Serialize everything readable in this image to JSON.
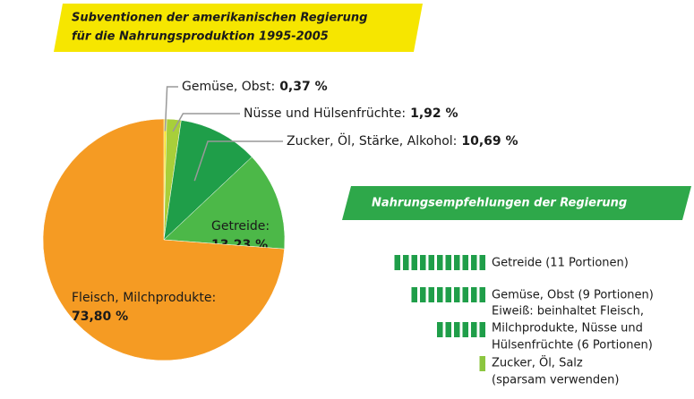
{
  "chart_data": [
    {
      "type": "pie",
      "title": [
        "Subventionen der amerikanischen Regierung",
        "für die Nahrungsproduktion 1995-2005"
      ],
      "categories": [
        "Gemüse, Obst:",
        "Nüsse und Hülsenfrüchte:",
        "Zucker, Öl, Stärke, Alkohol:",
        "Getreide:",
        "Fleisch, Milchprodukte:"
      ],
      "values": [
        0.37,
        1.92,
        10.69,
        13.23,
        73.8
      ],
      "value_labels": [
        "0,37 %",
        "1,92 %",
        "10,69 %",
        "13,23 %",
        "73,80 %"
      ],
      "colors": [
        "#f6e11c",
        "#a8cf3a",
        "#1f9e49",
        "#4cb848",
        "#f59b23"
      ]
    },
    {
      "type": "pictogram",
      "title": "Nahrungsempfehlungen der Regierung",
      "categories": [
        [
          "Getreide (11 Portionen)"
        ],
        [
          "Gemüse, Obst (9 Portionen)"
        ],
        [
          "Eiweiß: beinhaltet Fleisch,",
          "Milchprodukte, Nüsse und",
          "Hülsenfrüchte (6 Portionen)"
        ],
        [
          "Zucker, Öl, Salz",
          "(sparsam verwenden)"
        ]
      ],
      "values": [
        11,
        9,
        6,
        1
      ],
      "colors": [
        "#1f9e49",
        "#1f9e49",
        "#1f9e49",
        "#8cc63f"
      ]
    }
  ]
}
